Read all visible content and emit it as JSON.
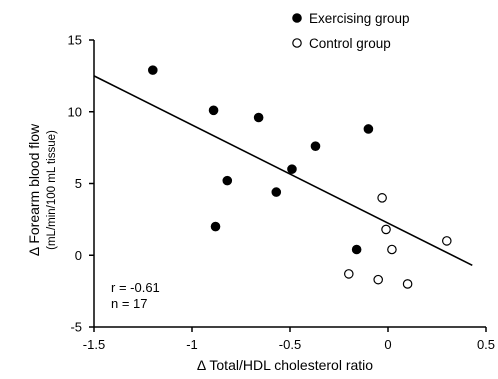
{
  "chart_data": {
    "type": "scatter",
    "xlabel": "Δ Total/HDL cholesterol ratio",
    "ylabel": "Δ Forearm blood flow",
    "ylabel_unit": "(mL/min/100 mL tissue)",
    "xlim": [
      -1.5,
      0.5
    ],
    "ylim": [
      -5,
      15
    ],
    "xticks": [
      -1.5,
      -1,
      -0.5,
      0,
      0.5
    ],
    "xtick_labels": [
      "-1.5",
      "-1",
      "-0.5",
      "0",
      "0.5"
    ],
    "yticks": [
      -5,
      0,
      5,
      10,
      15
    ],
    "ytick_labels": [
      "-5",
      "0",
      "5",
      "10",
      "15"
    ],
    "grid": false,
    "legend_position": "top-right",
    "series": [
      {
        "name": "Exercising group",
        "marker": "filled-circle",
        "color": "#000000",
        "points": [
          {
            "x": -1.2,
            "y": 12.9
          },
          {
            "x": -0.89,
            "y": 10.1
          },
          {
            "x": -0.66,
            "y": 9.6
          },
          {
            "x": -0.1,
            "y": 8.8
          },
          {
            "x": -0.37,
            "y": 7.6
          },
          {
            "x": -0.49,
            "y": 6.0
          },
          {
            "x": -0.82,
            "y": 5.2
          },
          {
            "x": -0.57,
            "y": 4.4
          },
          {
            "x": -0.88,
            "y": 2.0
          },
          {
            "x": -0.16,
            "y": 0.4
          }
        ]
      },
      {
        "name": "Control group",
        "marker": "open-circle",
        "color": "#000000",
        "points": [
          {
            "x": -0.03,
            "y": 4.0
          },
          {
            "x": -0.01,
            "y": 1.8
          },
          {
            "x": 0.3,
            "y": 1.0
          },
          {
            "x": 0.02,
            "y": 0.4
          },
          {
            "x": -0.2,
            "y": -1.3
          },
          {
            "x": -0.05,
            "y": -1.7
          },
          {
            "x": 0.1,
            "y": -2.0
          }
        ]
      }
    ],
    "regression_line": {
      "x1": -1.5,
      "y1": 12.5,
      "x2": 0.43,
      "y2": -0.7
    },
    "annotations": {
      "r_text": "r = -0.61",
      "n_text": "n = 17"
    }
  }
}
